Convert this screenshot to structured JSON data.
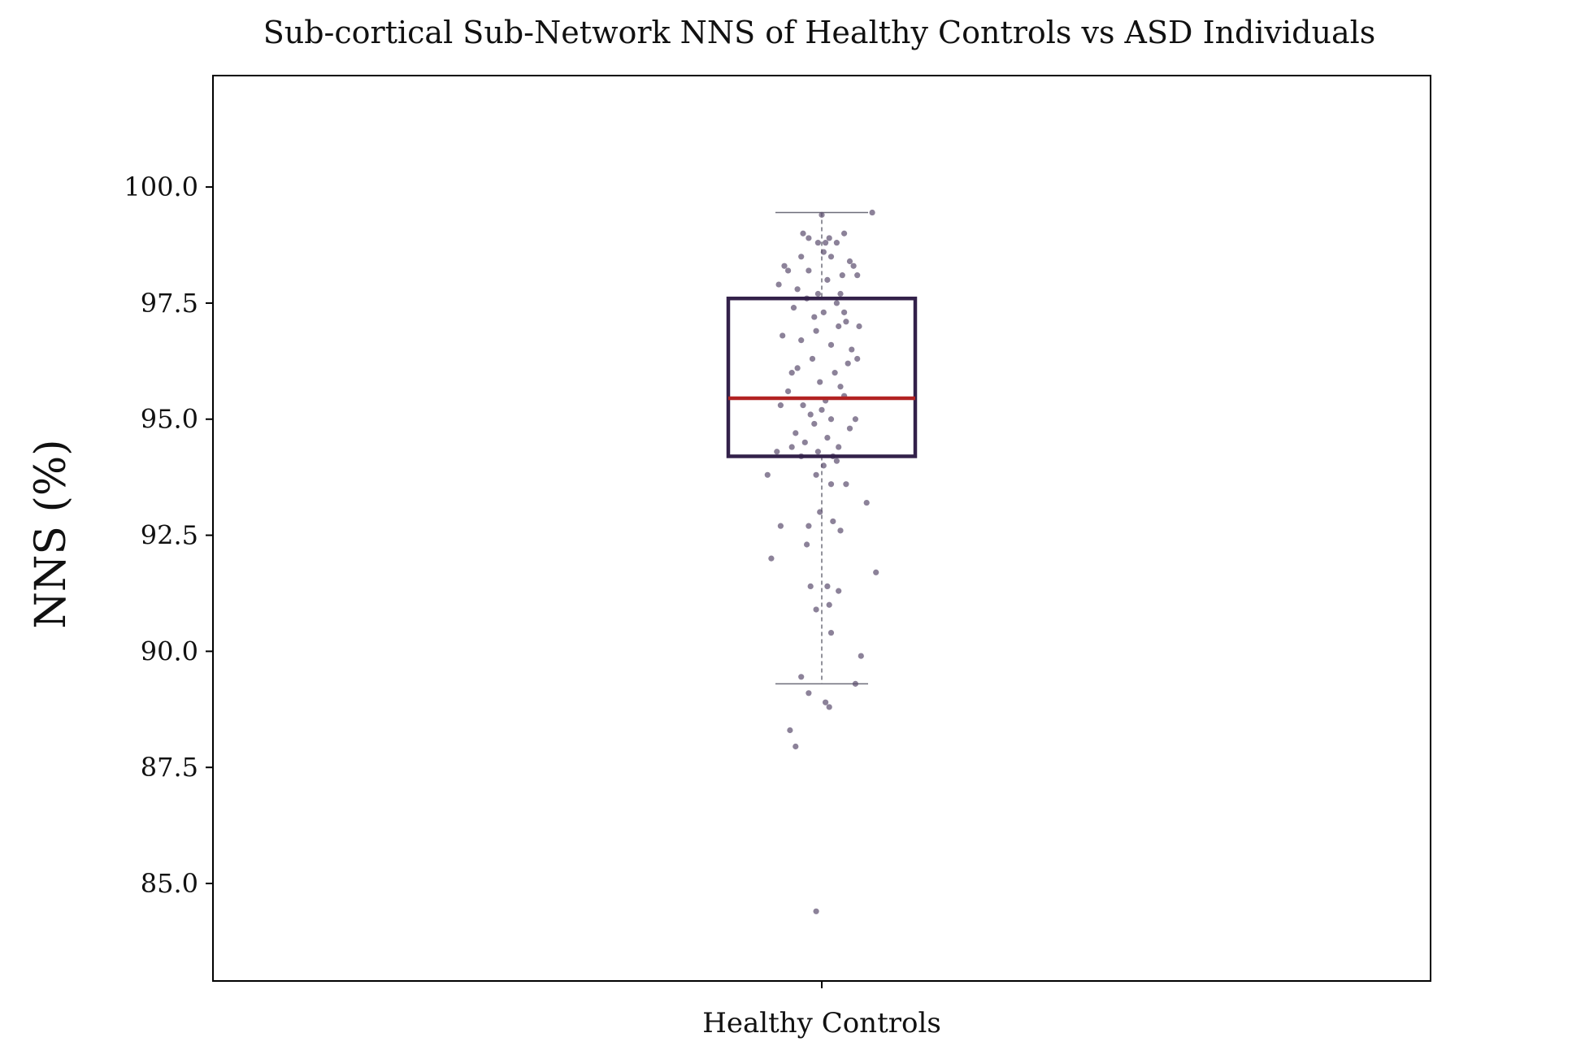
{
  "chart_data": {
    "type": "box",
    "title": "Sub-cortical Sub-Network NNS of Healthy Controls vs ASD Individuals",
    "xlabel": "",
    "ylabel": "NNS (%)",
    "categories": [
      "Healthy Controls"
    ],
    "ylim": [
      82.9,
      102.4
    ],
    "yticks": [
      85.0,
      87.5,
      90.0,
      92.5,
      95.0,
      97.5,
      100.0
    ],
    "ytick_labels": [
      "85.0",
      "87.5",
      "90.0",
      "92.5",
      "95.0",
      "97.5",
      "100.0"
    ],
    "grid": false,
    "colors": {
      "box": "#33214a",
      "median": "#b22222",
      "whisker": "#6e6e7a",
      "points": "#5b4d6e"
    },
    "box": {
      "category": "Healthy Controls",
      "q1": 94.2,
      "median": 95.45,
      "q3": 97.6,
      "whisker_low": 89.3,
      "whisker_high": 99.45
    },
    "points": [
      {
        "x": 0.0,
        "y": 99.4
      },
      {
        "x": 0.04,
        "y": 98.9
      },
      {
        "x": 0.02,
        "y": 98.8
      },
      {
        "x": -0.07,
        "y": 98.9
      },
      {
        "x": 0.12,
        "y": 99.0
      },
      {
        "x": -0.02,
        "y": 98.8
      },
      {
        "x": 0.08,
        "y": 98.8
      },
      {
        "x": -0.11,
        "y": 98.5
      },
      {
        "x": 0.05,
        "y": 98.5
      },
      {
        "x": 0.15,
        "y": 98.4
      },
      {
        "x": -0.18,
        "y": 98.2
      },
      {
        "x": 0.11,
        "y": 98.1
      },
      {
        "x": -0.07,
        "y": 98.2
      },
      {
        "x": 0.03,
        "y": 98.0
      },
      {
        "x": -0.02,
        "y": 97.7
      },
      {
        "x": 0.19,
        "y": 98.1
      },
      {
        "x": -0.08,
        "y": 97.6
      },
      {
        "x": 0.1,
        "y": 97.7
      },
      {
        "x": -0.13,
        "y": 97.8
      },
      {
        "x": 0.08,
        "y": 97.5
      },
      {
        "x": -0.23,
        "y": 97.9
      },
      {
        "x": 0.13,
        "y": 97.1
      },
      {
        "x": 0.01,
        "y": 97.3
      },
      {
        "x": -0.04,
        "y": 97.2
      },
      {
        "x": 0.09,
        "y": 97.0
      },
      {
        "x": -0.21,
        "y": 96.8
      },
      {
        "x": 0.2,
        "y": 97.0
      },
      {
        "x": 0.16,
        "y": 96.5
      },
      {
        "x": -0.11,
        "y": 96.7
      },
      {
        "x": 0.05,
        "y": 96.6
      },
      {
        "x": -0.05,
        "y": 96.3
      },
      {
        "x": 0.07,
        "y": 96.0
      },
      {
        "x": -0.13,
        "y": 96.1
      },
      {
        "x": 0.14,
        "y": 96.2
      },
      {
        "x": -0.01,
        "y": 95.8
      },
      {
        "x": 0.1,
        "y": 95.7
      },
      {
        "x": -0.18,
        "y": 95.6
      },
      {
        "x": 0.02,
        "y": 95.4
      },
      {
        "x": 0.12,
        "y": 95.5
      },
      {
        "x": -0.1,
        "y": 95.3
      },
      {
        "x": -0.22,
        "y": 95.3
      },
      {
        "x": 0.05,
        "y": 95.0
      },
      {
        "x": -0.06,
        "y": 95.1
      },
      {
        "x": 0.15,
        "y": 94.8
      },
      {
        "x": -0.04,
        "y": 94.9
      },
      {
        "x": 0.03,
        "y": 94.6
      },
      {
        "x": -0.14,
        "y": 94.7
      },
      {
        "x": 0.09,
        "y": 94.4
      },
      {
        "x": -0.09,
        "y": 94.5
      },
      {
        "x": -0.02,
        "y": 94.3
      },
      {
        "x": 0.06,
        "y": 94.2
      },
      {
        "x": -0.11,
        "y": 94.2
      },
      {
        "x": 0.01,
        "y": 94.0
      },
      {
        "x": -0.03,
        "y": 93.8
      },
      {
        "x": -0.29,
        "y": 93.8
      },
      {
        "x": 0.13,
        "y": 93.6
      },
      {
        "x": 0.05,
        "y": 93.6
      },
      {
        "x": 0.24,
        "y": 93.2
      },
      {
        "x": -0.01,
        "y": 93.0
      },
      {
        "x": 0.06,
        "y": 92.8
      },
      {
        "x": -0.22,
        "y": 92.7
      },
      {
        "x": 0.1,
        "y": 92.6
      },
      {
        "x": -0.07,
        "y": 92.7
      },
      {
        "x": -0.08,
        "y": 92.3
      },
      {
        "x": -0.27,
        "y": 92.0
      },
      {
        "x": 0.29,
        "y": 91.7
      },
      {
        "x": -0.06,
        "y": 91.4
      },
      {
        "x": 0.03,
        "y": 91.4
      },
      {
        "x": 0.09,
        "y": 91.3
      },
      {
        "x": 0.04,
        "y": 91.0
      },
      {
        "x": -0.03,
        "y": 90.9
      },
      {
        "x": 0.05,
        "y": 90.4
      },
      {
        "x": 0.21,
        "y": 89.9
      },
      {
        "x": -0.11,
        "y": 89.45
      },
      {
        "x": 0.18,
        "y": 89.3
      },
      {
        "x": -0.07,
        "y": 89.1
      },
      {
        "x": 0.02,
        "y": 88.9
      },
      {
        "x": 0.04,
        "y": 88.8
      },
      {
        "x": -0.17,
        "y": 88.3
      },
      {
        "x": -0.14,
        "y": 87.95
      },
      {
        "x": -0.03,
        "y": 84.4
      },
      {
        "x": 0.27,
        "y": 99.45
      },
      {
        "x": -0.1,
        "y": 99.0
      },
      {
        "x": 0.01,
        "y": 98.6
      },
      {
        "x": -0.2,
        "y": 98.3
      },
      {
        "x": 0.17,
        "y": 98.3
      },
      {
        "x": -0.15,
        "y": 97.4
      },
      {
        "x": 0.12,
        "y": 97.3
      },
      {
        "x": -0.03,
        "y": 96.9
      },
      {
        "x": 0.19,
        "y": 96.3
      },
      {
        "x": -0.16,
        "y": 96.0
      },
      {
        "x": 0.0,
        "y": 95.2
      },
      {
        "x": 0.18,
        "y": 95.0
      },
      {
        "x": -0.16,
        "y": 94.4
      },
      {
        "x": 0.08,
        "y": 94.1
      },
      {
        "x": -0.24,
        "y": 94.3
      }
    ]
  }
}
